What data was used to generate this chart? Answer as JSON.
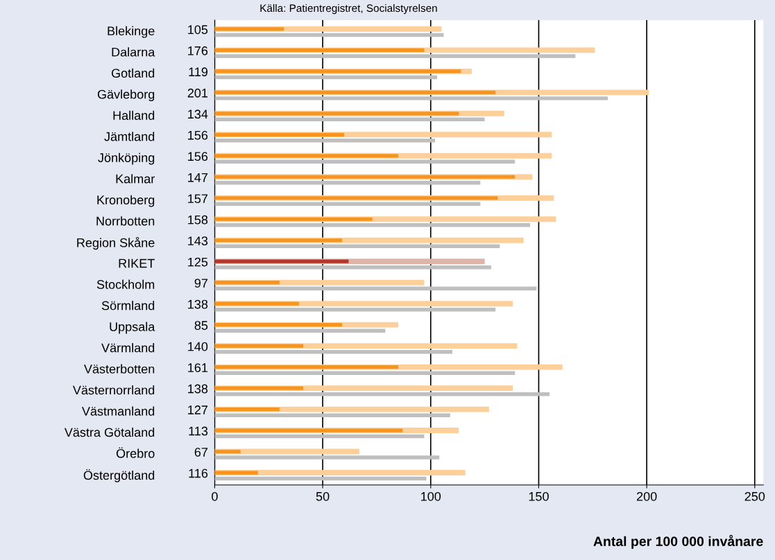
{
  "chart_data": {
    "type": "bar",
    "orientation": "horizontal",
    "annotations": [
      "Källa: Patientregistret, Socialstyrelsen"
    ],
    "xlabel": "Antal per 100 000 invånare",
    "categories": [
      "Blekinge",
      "Dalarna",
      "Gotland",
      "Gävleborg",
      "Halland",
      "Jämtland",
      "Jönköping",
      "Kalmar",
      "Kronoberg",
      "Norrbotten",
      "Region Skåne",
      "RIKET",
      "Stockholm",
      "Sörmland",
      "Uppsala",
      "Värmland",
      "Västerbotten",
      "Västernorrland",
      "Västmanland",
      "Västra Götaland",
      "Örebro",
      "Östergötland"
    ],
    "series": [
      {
        "colors": [
          "#fdcf9a",
          "#fdcf9a",
          "#fdcf9a",
          "#fdcf9a",
          "#fdcf9a",
          "#fdcf9a",
          "#fdcf9a",
          "#fdcf9a",
          "#fdcf9a",
          "#fdcf9a",
          "#fdcf9a",
          "#dfb4a8",
          "#fdcf9a",
          "#fdcf9a",
          "#fdcf9a",
          "#fdcf9a",
          "#fdcf9a",
          "#fdcf9a",
          "#fdcf9a",
          "#fdcf9a",
          "#fdcf9a",
          "#fdcf9a"
        ],
        "values": [
          105,
          176,
          119,
          201,
          134,
          156,
          156,
          147,
          157,
          158,
          143,
          125,
          97,
          138,
          85,
          140,
          161,
          138,
          127,
          113,
          67,
          116
        ],
        "value_labels": [
          "105",
          "176",
          "119",
          "201",
          "134",
          "156",
          "156",
          "147",
          "157",
          "158",
          "143",
          "125",
          "97",
          "138",
          "85",
          "140",
          "161",
          "138",
          "127",
          "113",
          "67",
          "116"
        ]
      },
      {
        "colors": [
          "#f7941d",
          "#f7941d",
          "#f7941d",
          "#f7941d",
          "#f7941d",
          "#f7941d",
          "#f7941d",
          "#f7941d",
          "#f7941d",
          "#f7941d",
          "#f7941d",
          "#b5352a",
          "#f7941d",
          "#f7941d",
          "#f7941d",
          "#f7941d",
          "#f7941d",
          "#f7941d",
          "#f7941d",
          "#f7941d",
          "#f7941d",
          "#f7941d"
        ],
        "values": [
          32,
          97,
          114,
          130,
          113,
          60,
          85,
          139,
          131,
          73,
          59,
          62,
          30,
          39,
          59,
          41,
          85,
          41,
          30,
          87,
          12,
          20
        ]
      },
      {
        "color": "#bfbfbf",
        "values": [
          106,
          167,
          103,
          182,
          125,
          102,
          139,
          123,
          123,
          146,
          132,
          128,
          149,
          130,
          79,
          110,
          139,
          155,
          109,
          97,
          104,
          98
        ]
      }
    ],
    "xlim": [
      0,
      254
    ],
    "xticks": [
      0,
      50,
      100,
      150,
      200,
      250
    ],
    "grid": "x"
  }
}
